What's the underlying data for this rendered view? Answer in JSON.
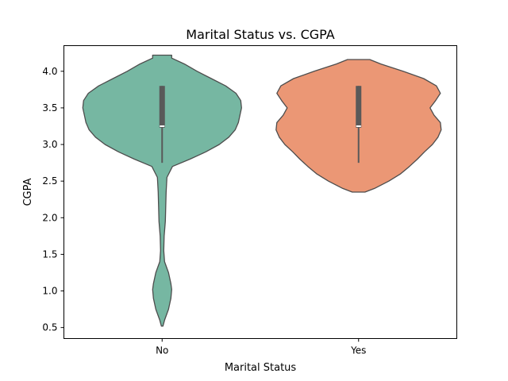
{
  "chart_data": {
    "type": "violin",
    "title": "Marital Status vs. CGPA",
    "xlabel": "Marital Status",
    "ylabel": "CGPA",
    "ylim": [
      0.35,
      4.35
    ],
    "yticks": [
      0.5,
      1.0,
      1.5,
      2.0,
      2.5,
      3.0,
      3.5,
      4.0
    ],
    "ytick_labels": [
      "0.5",
      "1.0",
      "1.5",
      "2.0",
      "2.5",
      "3.0",
      "3.5",
      "4.0"
    ],
    "grid": false,
    "categories": [
      "No",
      "Yes"
    ],
    "series": [
      {
        "category": "No",
        "color": "#76b7a2",
        "median": 3.25,
        "q1": 3.23,
        "q3": 3.8,
        "whisker_low": 2.75,
        "whisker_high": 3.8,
        "kde_y": [
          0.52,
          0.6,
          0.75,
          0.9,
          1.02,
          1.1,
          1.25,
          1.4,
          1.55,
          1.75,
          1.95,
          2.15,
          2.35,
          2.55,
          2.7,
          2.8,
          2.9,
          3.0,
          3.1,
          3.2,
          3.3,
          3.4,
          3.5,
          3.6,
          3.7,
          3.8,
          3.9,
          4.0,
          4.1,
          4.18,
          4.22
        ],
        "kde_density": [
          0.01,
          0.03,
          0.08,
          0.11,
          0.12,
          0.11,
          0.08,
          0.03,
          0.02,
          0.025,
          0.04,
          0.045,
          0.05,
          0.06,
          0.13,
          0.35,
          0.55,
          0.72,
          0.84,
          0.92,
          0.96,
          0.98,
          1.0,
          0.99,
          0.93,
          0.8,
          0.62,
          0.44,
          0.28,
          0.12,
          0.12
        ]
      },
      {
        "category": "Yes",
        "color": "#eb9775",
        "median": 3.25,
        "q1": 3.23,
        "q3": 3.8,
        "whisker_low": 2.75,
        "whisker_high": 3.8,
        "kde_y": [
          2.35,
          2.4,
          2.5,
          2.6,
          2.7,
          2.8,
          2.9,
          3.0,
          3.1,
          3.2,
          3.3,
          3.4,
          3.5,
          3.6,
          3.7,
          3.8,
          3.9,
          4.0,
          4.1,
          4.16
        ],
        "kde_density": [
          0.08,
          0.2,
          0.38,
          0.53,
          0.64,
          0.74,
          0.83,
          0.93,
          1.0,
          1.04,
          1.03,
          0.95,
          0.9,
          0.97,
          1.03,
          0.98,
          0.82,
          0.56,
          0.28,
          0.14
        ]
      }
    ]
  }
}
